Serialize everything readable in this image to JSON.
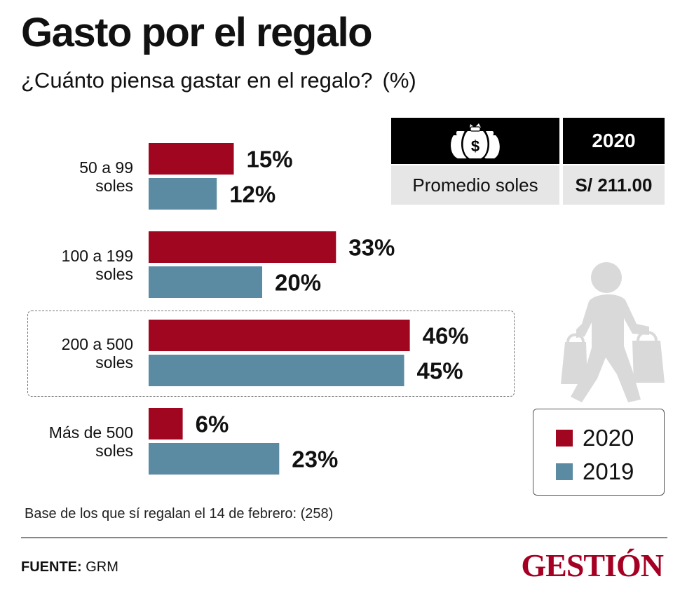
{
  "header": {
    "title": "Gasto por el regalo",
    "subtitle": "¿Cuánto piensa gastar en el regalo?",
    "subtitle_unit": "(%)"
  },
  "chart_data": {
    "type": "bar",
    "orientation": "horizontal",
    "categories_lines": [
      [
        "50 a 99",
        "soles"
      ],
      [
        "100 a 199",
        "soles"
      ],
      [
        "200 a 500",
        "soles"
      ],
      [
        "Más de 500",
        "soles"
      ]
    ],
    "categories": [
      "50 a 99 soles",
      "100 a 199 soles",
      "200 a 500 soles",
      "Más de 500 soles"
    ],
    "series": [
      {
        "name": "2020",
        "color": "#a0061f",
        "values": [
          15,
          33,
          46,
          6
        ]
      },
      {
        "name": "2019",
        "color": "#5b8aa3",
        "values": [
          12,
          20,
          45,
          23
        ]
      }
    ],
    "value_suffix": "%",
    "xlim": [
      0,
      50
    ],
    "highlighted_category": "200 a 500 soles"
  },
  "average_table": {
    "icon": "money-bags-icon",
    "year_header": "2020",
    "row_label": "Promedio soles",
    "row_value": "S/ 211.00"
  },
  "legend": {
    "items": [
      {
        "label": "2020",
        "color": "#a0061f"
      },
      {
        "label": "2019",
        "color": "#5b8aa3"
      }
    ]
  },
  "footer": {
    "base_note": "Base de los que sí regalan el 14 de febrero: (258)",
    "source_key": "FUENTE:",
    "source_value": "GRM",
    "brand": "GESTIÓN"
  },
  "colors": {
    "accent_2020": "#a0061f",
    "accent_2019": "#5b8aa3",
    "shopper_gray": "#d9d9d9",
    "table_row_bg": "#e6e6e6"
  }
}
